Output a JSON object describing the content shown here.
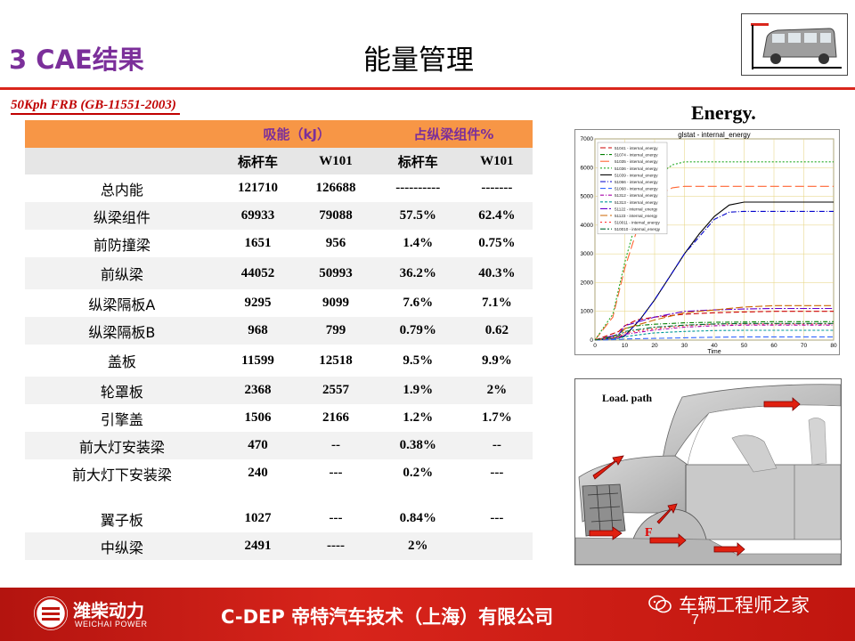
{
  "header": {
    "section_title": "3  CAE结果",
    "slide_title": "能量管理"
  },
  "subtitle": "50Kph FRB  (GB-11551-2003)",
  "table": {
    "group_headers": [
      "吸能（kJ）",
      "占纵梁组件%"
    ],
    "col_headers": [
      "标杆车",
      "W101",
      "标杆车",
      "W101"
    ],
    "rows": [
      {
        "name": "总内能",
        "v": [
          "121710",
          "126688",
          "----------",
          "-------"
        ]
      },
      {
        "name": "纵梁组件",
        "v": [
          "69933",
          "79088",
          "57.5%",
          "62.4%"
        ]
      },
      {
        "name": "前防撞梁",
        "v": [
          "1651",
          "956",
          "1.4%",
          "0.75%"
        ]
      },
      {
        "name": "前纵梁",
        "v": [
          "44052",
          "50993",
          "36.2%",
          "40.3%"
        ]
      },
      {
        "name": "纵梁隔板A",
        "v": [
          "9295",
          "9099",
          "7.6%",
          "7.1%"
        ]
      },
      {
        "name": "纵梁隔板B",
        "v": [
          "968",
          "799",
          "0.79%",
          "0.62"
        ]
      },
      {
        "name": "盖板",
        "v": [
          "11599",
          "12518",
          "9.5%",
          "9.9%"
        ]
      },
      {
        "name": "轮罩板",
        "v": [
          "2368",
          "2557",
          "1.9%",
          "2%"
        ]
      },
      {
        "name": "引擎盖",
        "v": [
          "1506",
          "2166",
          "1.2%",
          "1.7%"
        ]
      },
      {
        "name": "前大灯安装梁",
        "v": [
          "470",
          "--",
          "0.38%",
          "--"
        ]
      },
      {
        "name": "前大灯下安装梁",
        "v": [
          "240",
          "---",
          "0.2%",
          "---"
        ]
      },
      {
        "name": "翼子板",
        "v": [
          "1027",
          "---",
          "0.84%",
          "---"
        ]
      },
      {
        "name": "中纵梁",
        "v": [
          "2491",
          "----",
          "2%",
          ""
        ]
      }
    ]
  },
  "energy_title": "Energy.",
  "chart_data": {
    "type": "line",
    "title": "glstat - internal_energy",
    "xlabel": "Time",
    "ylabel": "",
    "xlim": [
      0,
      80
    ],
    "ylim": [
      0,
      7000
    ],
    "xticks": [
      "0",
      "10",
      "20",
      "30",
      "40",
      "50",
      "60",
      "70",
      "80"
    ],
    "yticks": [
      "0",
      "1000",
      "2000",
      "3000",
      "4000",
      "5000",
      "6000",
      "7000"
    ],
    "legend_position": "top-left",
    "series": [
      {
        "name": "51041 - internal_energy",
        "color": "#cc0000",
        "dash": "6,3",
        "x": [
          0,
          8,
          10,
          14,
          20,
          30,
          40,
          50,
          60,
          70,
          80
        ],
        "y": [
          0,
          300,
          500,
          700,
          800,
          900,
          950,
          980,
          1000,
          1000,
          1000
        ]
      },
      {
        "name": "51074 - internal_energy",
        "color": "#008000",
        "dash": "5,2,1,2",
        "x": [
          0,
          8,
          10,
          14,
          20,
          30,
          40,
          50,
          60,
          70,
          80
        ],
        "y": [
          0,
          200,
          400,
          500,
          550,
          600,
          620,
          630,
          640,
          640,
          640
        ]
      },
      {
        "name": "51035 - internal_energy",
        "color": "#ff6633",
        "dash": "10,4",
        "x": [
          0,
          6,
          10,
          14,
          18,
          22,
          26,
          30,
          40,
          60,
          80
        ],
        "y": [
          0,
          800,
          2500,
          3800,
          4600,
          5100,
          5300,
          5350,
          5350,
          5350,
          5350
        ]
      },
      {
        "name": "51036 - internal_energy",
        "color": "#22aa22",
        "dash": "2,2",
        "x": [
          0,
          6,
          10,
          14,
          18,
          22,
          26,
          30,
          40,
          60,
          80
        ],
        "y": [
          0,
          900,
          2700,
          4200,
          5100,
          5800,
          6100,
          6200,
          6200,
          6200,
          6200
        ]
      },
      {
        "name": "51039 - internal_energy",
        "color": "#000000",
        "dash": "",
        "x": [
          0,
          8,
          10,
          15,
          20,
          25,
          30,
          35,
          40,
          45,
          50,
          60,
          80
        ],
        "y": [
          0,
          80,
          150,
          700,
          1400,
          2200,
          3000,
          3700,
          4300,
          4700,
          4800,
          4800,
          4800
        ]
      },
      {
        "name": "51066 - internal_energy",
        "color": "#0000cc",
        "dash": "6,2,1,2",
        "x": [
          0,
          8,
          10,
          15,
          20,
          30,
          40,
          45,
          50,
          60,
          80
        ],
        "y": [
          0,
          80,
          150,
          700,
          1400,
          3000,
          4200,
          4450,
          4480,
          4480,
          4480
        ]
      },
      {
        "name": "51068 - internal_energy",
        "color": "#3366ff",
        "dash": "6,3",
        "x": [
          0,
          8,
          10,
          20,
          30,
          40,
          50,
          60,
          80
        ],
        "y": [
          0,
          20,
          40,
          60,
          80,
          100,
          110,
          110,
          110
        ]
      },
      {
        "name": "51312 - internal_energy",
        "color": "#aa00aa",
        "dash": "4,2,1,2",
        "x": [
          0,
          8,
          10,
          20,
          30,
          40,
          50,
          60,
          80
        ],
        "y": [
          0,
          100,
          200,
          350,
          450,
          500,
          520,
          520,
          520
        ]
      },
      {
        "name": "51313 - internal_energy",
        "color": "#009999",
        "dash": "3,2",
        "x": [
          0,
          8,
          10,
          20,
          30,
          40,
          50,
          60,
          80
        ],
        "y": [
          0,
          60,
          120,
          250,
          300,
          330,
          340,
          340,
          340
        ]
      },
      {
        "name": "51122 - internal_energy",
        "color": "#6600cc",
        "dash": "8,2,2,2",
        "x": [
          0,
          8,
          10,
          20,
          30,
          40,
          50,
          60,
          80
        ],
        "y": [
          0,
          200,
          500,
          800,
          1000,
          1050,
          1080,
          1100,
          1100
        ]
      },
      {
        "name": "51123 - internal_energy",
        "color": "#cc6600",
        "dash": "8,3",
        "x": [
          0,
          8,
          10,
          20,
          30,
          40,
          50,
          60,
          80
        ],
        "y": [
          0,
          150,
          400,
          700,
          950,
          1050,
          1150,
          1200,
          1200
        ]
      },
      {
        "name": "510011 - internal_energy",
        "color": "#ff3333",
        "dash": "2,3",
        "x": [
          0,
          8,
          10,
          20,
          30,
          40,
          50,
          60,
          80
        ],
        "y": [
          0,
          100,
          250,
          400,
          500,
          550,
          560,
          560,
          560
        ]
      },
      {
        "name": "510010 - internal_energy",
        "color": "#006633",
        "dash": "6,2,2,2",
        "x": [
          0,
          8,
          10,
          20,
          30,
          40,
          50,
          60,
          80
        ],
        "y": [
          0,
          150,
          300,
          450,
          520,
          560,
          580,
          580,
          580
        ]
      }
    ]
  },
  "crash_view": {
    "load_label": "Load. path",
    "force_label": "F"
  },
  "footer": {
    "company_cn": "潍柴动力",
    "company_en": "WEICHAI POWER",
    "text": "C-DEP  帝特汽车技术（上海）有限公司",
    "page": "7",
    "watermark": "车辆工程师之家"
  }
}
